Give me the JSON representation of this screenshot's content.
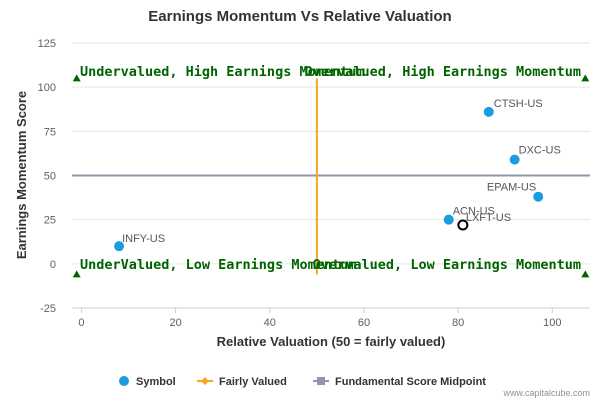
{
  "chart_data": {
    "type": "scatter",
    "title": "Earnings Momentum Vs Relative Valuation",
    "xlabel": "Relative Valuation (50 = fairly valued)",
    "ylabel": "Earnings Momentum Score",
    "xlim": [
      -2,
      108
    ],
    "ylim": [
      -25,
      125
    ],
    "xticks": [
      0,
      20,
      40,
      60,
      80,
      100
    ],
    "yticks": [
      125,
      100,
      75,
      50,
      25,
      0,
      -25
    ],
    "points": [
      {
        "label": "INFY-US",
        "x": 8,
        "y": 10
      },
      {
        "label": "ACN-US",
        "x": 78,
        "y": 25
      },
      {
        "label": "LXFT-US",
        "x": 81,
        "y": 22,
        "highlight": true
      },
      {
        "label": "EPAM-US",
        "x": 97,
        "y": 38
      },
      {
        "label": "DXC-US",
        "x": 92,
        "y": 59
      },
      {
        "label": "CTSH-US",
        "x": 86.5,
        "y": 86
      }
    ],
    "fairly_valued_x": 50,
    "midpoint_y": 50,
    "quadrants": {
      "top_left": "Undervalued, High Earnings Momentum",
      "top_right": "Overvalued, High Earnings Momentum",
      "bottom_left": "UnderValued, Low Earnings Momentum",
      "bottom_right": "Overvalued, Low Earnings Momentum"
    },
    "legend": [
      {
        "name": "Symbol",
        "color": "#1a9de0"
      },
      {
        "name": "Fairly Valued",
        "color": "#f5a623"
      },
      {
        "name": "Fundamental Score Midpoint",
        "color": "#8f98a8"
      }
    ],
    "credit": "www.capitalcube.com"
  },
  "colors": {
    "symbol": "#1a9de0",
    "fairly_valued": "#f5a623",
    "midpoint": "#8f98a8",
    "quadrant_text": "#006400"
  }
}
